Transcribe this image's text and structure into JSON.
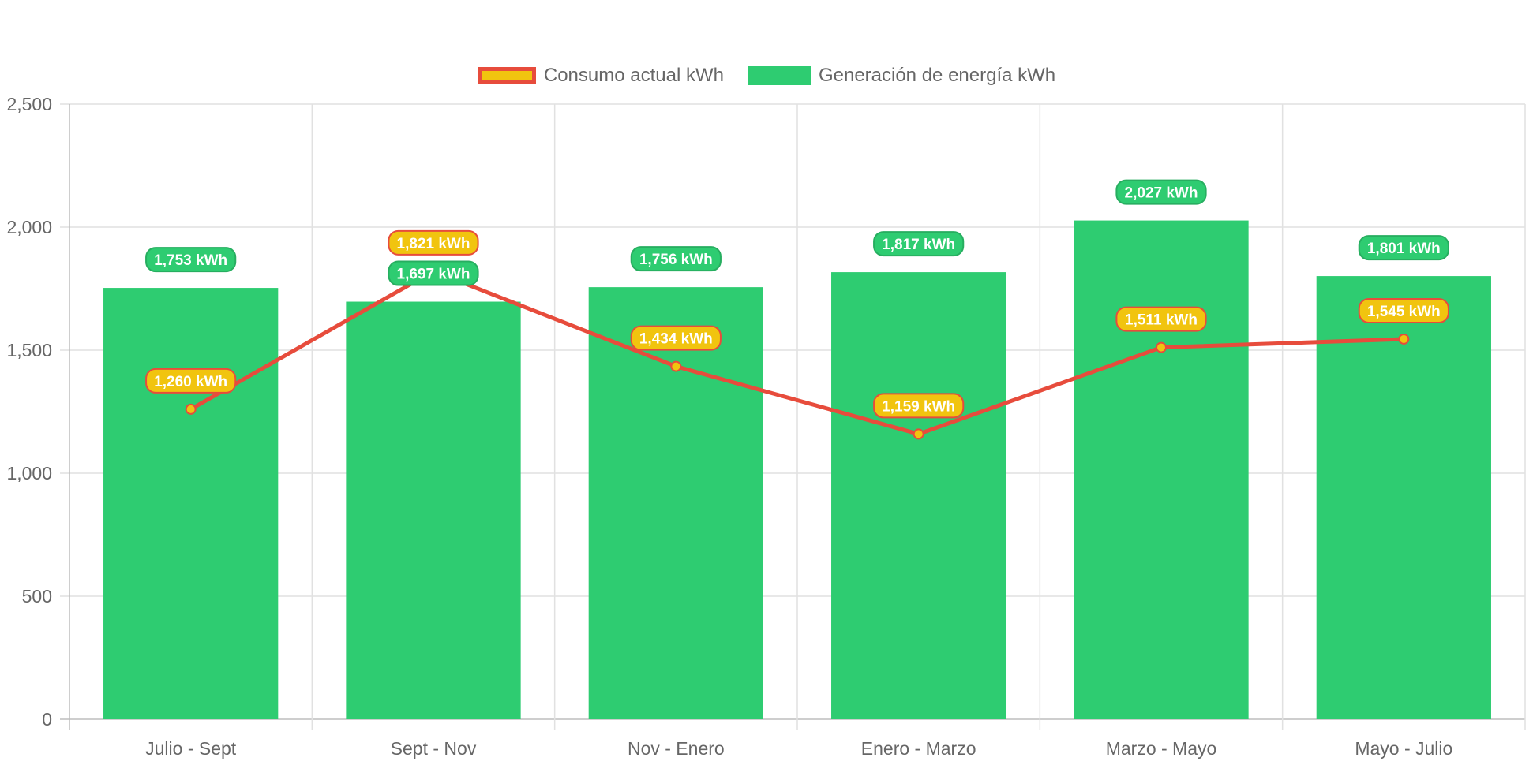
{
  "chart_data": {
    "type": "bar",
    "title": "",
    "xlabel": "",
    "ylabel": "",
    "ylim": [
      0,
      2500
    ],
    "yticks": [
      0,
      500,
      1000,
      1500,
      2000,
      2500
    ],
    "ytick_labels": [
      "0",
      "500",
      "1,000",
      "1,500",
      "2,000",
      "2,500"
    ],
    "categories": [
      "Julio - Sept",
      "Sept - Nov",
      "Nov - Enero",
      "Enero - Marzo",
      "Marzo - Mayo",
      "Mayo - Julio"
    ],
    "grid": true,
    "legend_position": "top-center",
    "series": [
      {
        "name": "Consumo actual kWh",
        "type": "line",
        "color": "#e74c3c",
        "point_color": "#f1c40f",
        "values": [
          1260,
          1821,
          1434,
          1159,
          1511,
          1545
        ],
        "labels": [
          "1,260 kWh",
          "1,821 kWh",
          "1,434 kWh",
          "1,159 kWh",
          "1,511 kWh",
          "1,545 kWh"
        ]
      },
      {
        "name": "Generación de energía kWh",
        "type": "bar",
        "color": "#2ecc71",
        "values": [
          1753,
          1697,
          1756,
          1817,
          2027,
          1801
        ],
        "labels": [
          "1,753 kWh",
          "1,697 kWh",
          "1,756 kWh",
          "1,817 kWh",
          "2,027 kWh",
          "1,801 kWh"
        ]
      }
    ]
  }
}
